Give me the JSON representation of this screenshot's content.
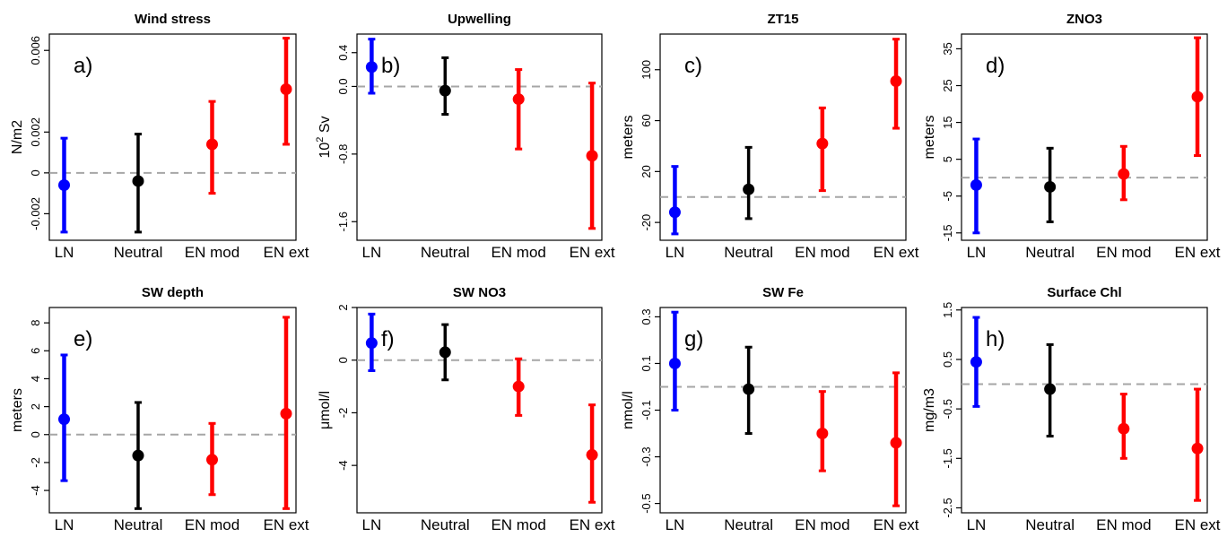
{
  "colors": {
    "LN": "#0000ff",
    "Neutral": "#000000",
    "EN mod": "#ff0000",
    "EN ext": "#ff0000",
    "refline": "#a6a6a6"
  },
  "chart_data": [
    {
      "type": "errorbar",
      "title": "Wind stress",
      "panel_label": "a)",
      "ylabel": "N/m2",
      "ylabel_super": "",
      "categories": [
        "LN",
        "Neutral",
        "EN mod",
        "EN ext"
      ],
      "ylim": [
        -0.0033,
        0.0068
      ],
      "yticks": [
        -0.002,
        0.0,
        0.002,
        0.006
      ],
      "ytick_labels": [
        "-0.002",
        "0",
        "0.002",
        "0.006"
      ],
      "reference": 0,
      "center": [
        -0.0006,
        -0.0004,
        0.0014,
        0.0041
      ],
      "lower": [
        -0.0029,
        -0.0029,
        -0.001,
        0.0014
      ],
      "upper": [
        0.0017,
        0.0019,
        0.0035,
        0.0066
      ]
    },
    {
      "type": "errorbar",
      "title": "Upwelling",
      "panel_label": "b)",
      "ylabel": " Sv",
      "ylabel_super": "2",
      "ylabel_prefix": "10",
      "categories": [
        "LN",
        "Neutral",
        "EN mod",
        "EN ext"
      ],
      "ylim": [
        -1.82,
        0.62
      ],
      "yticks": [
        -1.6,
        -0.8,
        0.0,
        0.4
      ],
      "ytick_labels": [
        "-1.6",
        "-0.8",
        "0.0",
        "0.4"
      ],
      "reference": 0,
      "center": [
        0.23,
        -0.05,
        -0.15,
        -0.82
      ],
      "lower": [
        -0.08,
        -0.33,
        -0.74,
        -1.68
      ],
      "upper": [
        0.56,
        0.34,
        0.2,
        0.04
      ]
    },
    {
      "type": "errorbar",
      "title": "ZT15",
      "panel_label": "c)",
      "ylabel": "meters",
      "ylabel_super": "",
      "categories": [
        "LN",
        "Neutral",
        "EN mod",
        "EN ext"
      ],
      "ylim": [
        -34,
        128
      ],
      "yticks": [
        -20,
        20,
        60,
        100
      ],
      "ytick_labels": [
        "-20",
        "20",
        "60",
        "100"
      ],
      "reference": 0,
      "center": [
        -12,
        6,
        42,
        91
      ],
      "lower": [
        -29,
        -17,
        5,
        54
      ],
      "upper": [
        24,
        39,
        70,
        124
      ]
    },
    {
      "type": "errorbar",
      "title": "ZNO3",
      "panel_label": "d)",
      "ylabel": "meters",
      "ylabel_super": "",
      "categories": [
        "LN",
        "Neutral",
        "EN mod",
        "EN ext"
      ],
      "ylim": [
        -17,
        39
      ],
      "yticks": [
        -15,
        -5,
        5,
        15,
        25,
        35
      ],
      "ytick_labels": [
        "-15",
        "-5",
        "5",
        "15",
        "25",
        "35"
      ],
      "reference": 0,
      "center": [
        -2,
        -2.5,
        1,
        22
      ],
      "lower": [
        -15,
        -12,
        -6,
        6
      ],
      "upper": [
        10.5,
        8,
        8.5,
        38
      ]
    },
    {
      "type": "errorbar",
      "title": "SW depth",
      "panel_label": "e)",
      "ylabel": "meters",
      "ylabel_super": "",
      "categories": [
        "LN",
        "Neutral",
        "EN mod",
        "EN ext"
      ],
      "ylim": [
        -5.6,
        9.1
      ],
      "yticks": [
        -4,
        -2,
        0,
        2,
        4,
        6,
        8
      ],
      "ytick_labels": [
        "-4",
        "-2",
        "0",
        "2",
        "4",
        "6",
        "8"
      ],
      "reference": 0,
      "center": [
        1.1,
        -1.5,
        -1.8,
        1.5
      ],
      "lower": [
        -3.3,
        -5.3,
        -4.3,
        -5.3
      ],
      "upper": [
        5.7,
        2.3,
        0.8,
        8.4
      ]
    },
    {
      "type": "errorbar",
      "title": "SW NO3",
      "panel_label": "f)",
      "ylabel": "μmol/l",
      "ylabel_super": "",
      "categories": [
        "LN",
        "Neutral",
        "EN mod",
        "EN ext"
      ],
      "ylim": [
        -5.8,
        2.0
      ],
      "yticks": [
        -4,
        -2,
        0,
        2
      ],
      "ytick_labels": [
        "-4",
        "-2",
        "0",
        "2"
      ],
      "reference": 0,
      "center": [
        0.65,
        0.3,
        -1.0,
        -3.6
      ],
      "lower": [
        -0.4,
        -0.75,
        -2.1,
        -5.4
      ],
      "upper": [
        1.75,
        1.35,
        0.05,
        -1.7
      ]
    },
    {
      "type": "errorbar",
      "title": "SW Fe",
      "panel_label": "g)",
      "ylabel": "nmol/l",
      "ylabel_super": "",
      "categories": [
        "LN",
        "Neutral",
        "EN mod",
        "EN ext"
      ],
      "ylim": [
        -0.54,
        0.34
      ],
      "yticks": [
        -0.5,
        -0.3,
        -0.1,
        0.1,
        0.3
      ],
      "ytick_labels": [
        "-0.5",
        "-0.3",
        "-0.1",
        "0.1",
        "0.3"
      ],
      "reference": 0,
      "center": [
        0.1,
        -0.01,
        -0.2,
        -0.24
      ],
      "lower": [
        -0.1,
        -0.2,
        -0.36,
        -0.51
      ],
      "upper": [
        0.32,
        0.17,
        -0.02,
        0.06
      ]
    },
    {
      "type": "errorbar",
      "title": "Surface Chl",
      "panel_label": "h)",
      "ylabel": "mg/m3",
      "ylabel_super": "",
      "categories": [
        "LN",
        "Neutral",
        "EN mod",
        "EN ext"
      ],
      "ylim": [
        -2.6,
        1.55
      ],
      "yticks": [
        -2.5,
        -1.5,
        -0.5,
        0.5,
        1.5
      ],
      "ytick_labels": [
        "-2.5",
        "-1.5",
        "-0.5",
        "0.5",
        "1.5"
      ],
      "reference": 0,
      "center": [
        0.45,
        -0.1,
        -0.9,
        -1.3
      ],
      "lower": [
        -0.45,
        -1.05,
        -1.5,
        -2.35
      ],
      "upper": [
        1.35,
        0.8,
        -0.2,
        -0.1
      ]
    }
  ]
}
